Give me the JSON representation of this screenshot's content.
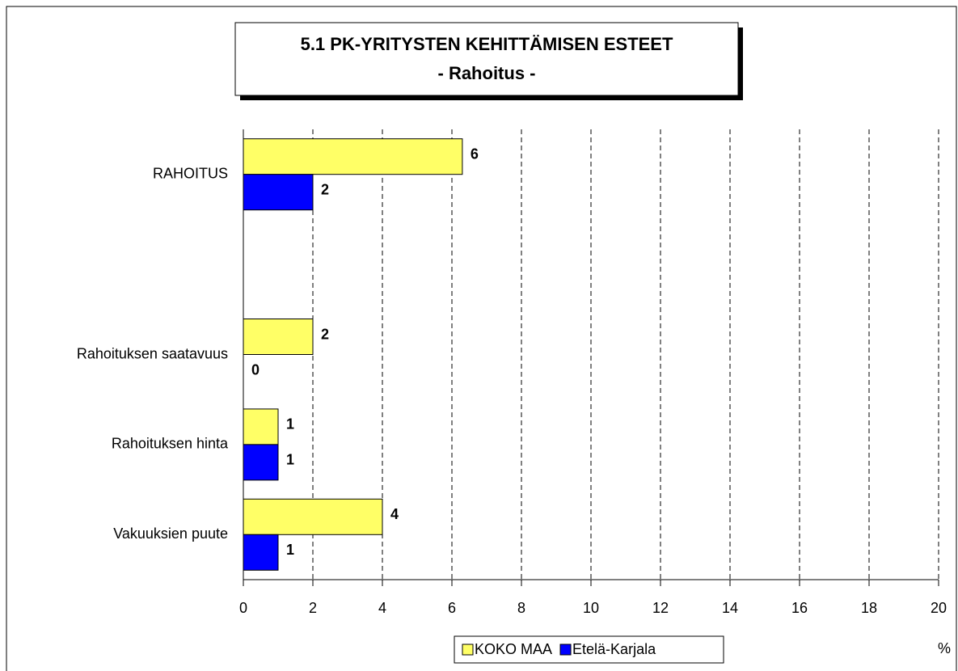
{
  "chart_data": {
    "type": "bar",
    "orientation": "horizontal",
    "title": "5.1 PK-YRITYSTEN KEHITTÄMISEN ESTEET",
    "subtitle": "- Rahoitus -",
    "x_label": "%",
    "categories": [
      "RAHOITUS",
      null,
      "Rahoituksen saatavuus",
      "Rahoituksen hinta",
      "Vakuuksien puute"
    ],
    "series": [
      {
        "name": "KOKO MAA",
        "color": "#ffff66",
        "values": [
          6.3,
          null,
          2,
          1,
          4
        ],
        "value_labels": [
          "6",
          null,
          "2",
          "1",
          "4"
        ]
      },
      {
        "name": "Etelä-Karjala",
        "color": "#0000ff",
        "values": [
          2,
          null,
          0,
          1,
          1
        ]
      }
    ],
    "xlim": [
      0,
      20
    ],
    "xticks": [
      0,
      2,
      4,
      6,
      8,
      10,
      12,
      14,
      16,
      18,
      20
    ],
    "grid": true,
    "legend": "bottom"
  }
}
